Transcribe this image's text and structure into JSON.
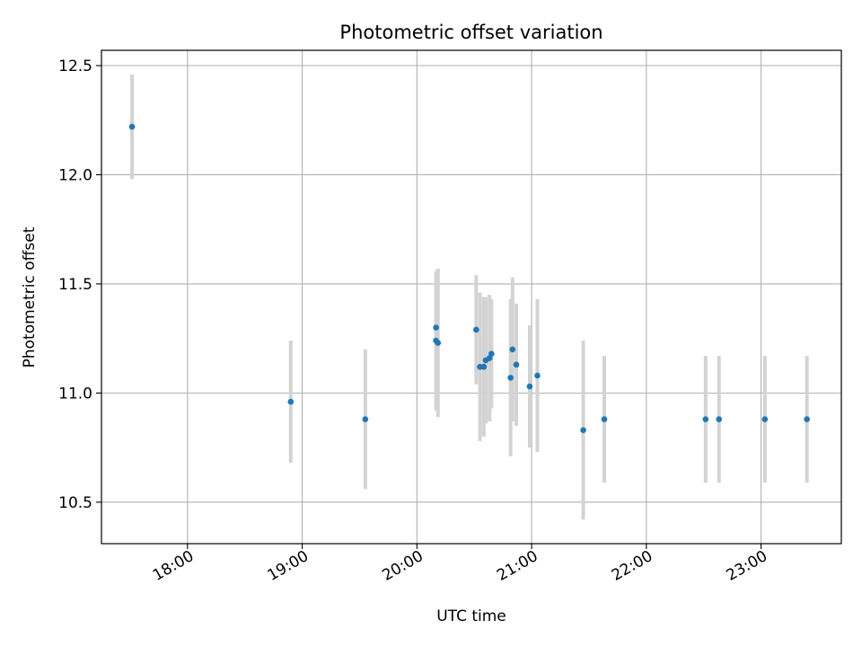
{
  "chart_data": {
    "type": "scatter",
    "title": "Photometric offset variation",
    "xlabel": "UTC time",
    "ylabel": "Photometric offset",
    "x_ticks": [
      "18:00",
      "19:00",
      "20:00",
      "21:00",
      "22:00",
      "23:00"
    ],
    "y_ticks": [
      "10.5",
      "11.0",
      "11.5",
      "12.0",
      "12.5"
    ],
    "xlim": [
      "17:15",
      "23:42"
    ],
    "ylim": [
      10.31,
      12.57
    ],
    "grid": true,
    "colors": {
      "point": "#1f77b4",
      "errorbar": "#d3d3d3",
      "grid": "#b0b0b0"
    },
    "points": [
      {
        "x": "17:31",
        "y": 12.22,
        "err": 0.24
      },
      {
        "x": "18:54",
        "y": 10.96,
        "err": 0.28
      },
      {
        "x": "19:33",
        "y": 10.88,
        "err": 0.32
      },
      {
        "x": "20:10",
        "y": 11.3,
        "err": 0.25
      },
      {
        "x": "20:10",
        "y": 11.24,
        "err": 0.32
      },
      {
        "x": "20:11",
        "y": 11.23,
        "err": 0.34
      },
      {
        "x": "20:31",
        "y": 11.29,
        "err": 0.25
      },
      {
        "x": "20:33",
        "y": 11.12,
        "err": 0.34
      },
      {
        "x": "20:35",
        "y": 11.12,
        "err": 0.32
      },
      {
        "x": "20:36",
        "y": 11.15,
        "err": 0.29
      },
      {
        "x": "20:38",
        "y": 11.16,
        "err": 0.29
      },
      {
        "x": "20:39",
        "y": 11.18,
        "err": 0.25
      },
      {
        "x": "20:49",
        "y": 11.07,
        "err": 0.36
      },
      {
        "x": "20:50",
        "y": 11.2,
        "err": 0.33
      },
      {
        "x": "20:52",
        "y": 11.13,
        "err": 0.28
      },
      {
        "x": "20:59",
        "y": 11.03,
        "err": 0.28
      },
      {
        "x": "21:03",
        "y": 11.08,
        "err": 0.35
      },
      {
        "x": "21:27",
        "y": 10.83,
        "err": 0.41
      },
      {
        "x": "21:38",
        "y": 10.88,
        "err": 0.29
      },
      {
        "x": "22:31",
        "y": 10.88,
        "err": 0.29
      },
      {
        "x": "22:38",
        "y": 10.88,
        "err": 0.29
      },
      {
        "x": "23:02",
        "y": 10.88,
        "err": 0.29
      },
      {
        "x": "23:24",
        "y": 10.88,
        "err": 0.29
      }
    ]
  }
}
